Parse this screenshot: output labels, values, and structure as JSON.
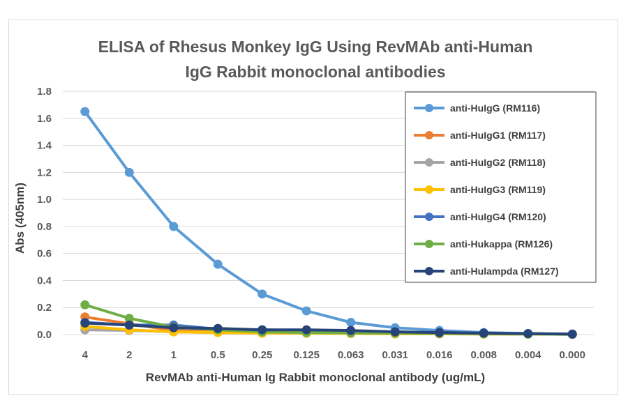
{
  "chart_data": {
    "type": "line",
    "title": "ELISA of Rhesus Monkey IgG Using RevMAb anti-Human IgG Rabbit monoclonal antibodies",
    "title_lines": [
      "ELISA of Rhesus Monkey IgG Using RevMAb anti-Human",
      "IgG Rabbit monoclonal  antibodies"
    ],
    "xlabel": "RevMAb anti-Human Ig Rabbit monoclonal antibody (ug/mL)",
    "ylabel": "Abs (405nm)",
    "ylim": [
      0,
      1.8
    ],
    "y_ticks": [
      "0.0",
      "0.2",
      "0.4",
      "0.6",
      "0.8",
      "1.0",
      "1.2",
      "1.4",
      "1.6",
      "1.8"
    ],
    "categories": [
      "4",
      "2",
      "1",
      "0.5",
      "0.25",
      "0.125",
      "0.063",
      "0.031",
      "0.016",
      "0.008",
      "0.004",
      "0.000"
    ],
    "grid": "horizontal",
    "legend_position": "right",
    "series": [
      {
        "name": "anti-HuIgG (RM116)",
        "color": "#5b9bd5",
        "values": [
          1.65,
          1.2,
          0.8,
          0.52,
          0.3,
          0.175,
          0.09,
          0.05,
          0.03,
          0.015,
          0.008,
          0.003
        ]
      },
      {
        "name": "anti-HuIgG1 (RM117)",
        "color": "#ed7d31",
        "values": [
          0.13,
          0.08,
          0.03,
          0.02,
          0.01,
          0.01,
          0.01,
          0.01,
          0.005,
          0.005,
          0.003,
          0.002
        ]
      },
      {
        "name": "anti-HuIgG2 (RM118)",
        "color": "#a5a5a5",
        "values": [
          0.035,
          0.03,
          0.02,
          0.015,
          0.01,
          0.01,
          0.008,
          0.005,
          0.005,
          0.004,
          0.003,
          0.002
        ]
      },
      {
        "name": "anti-HuIgG3 (RM119)",
        "color": "#ffc000",
        "values": [
          0.06,
          0.035,
          0.02,
          0.015,
          0.01,
          0.01,
          0.008,
          0.005,
          0.005,
          0.004,
          0.003,
          0.002
        ]
      },
      {
        "name": "anti-HuIgG4 (RM120)",
        "color": "#4472c4",
        "values": [
          0.09,
          0.07,
          0.07,
          0.04,
          0.035,
          0.03,
          0.025,
          0.02,
          0.015,
          0.01,
          0.006,
          0.003
        ]
      },
      {
        "name": "anti-Hukappa (RM126)",
        "color": "#70ad47",
        "values": [
          0.22,
          0.12,
          0.055,
          0.035,
          0.02,
          0.015,
          0.012,
          0.01,
          0.008,
          0.006,
          0.004,
          0.002
        ]
      },
      {
        "name": "anti-Hulampda (RM127)",
        "color": "#264478",
        "values": [
          0.085,
          0.07,
          0.05,
          0.045,
          0.035,
          0.035,
          0.03,
          0.02,
          0.015,
          0.01,
          0.007,
          0.003
        ]
      }
    ]
  }
}
